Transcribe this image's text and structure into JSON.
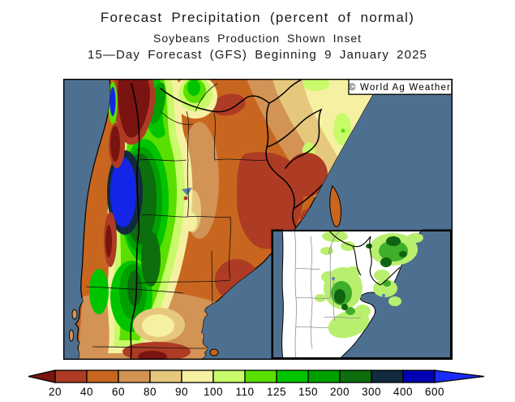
{
  "title": {
    "line1": "Forecast Precipitation (percent of normal)",
    "line2": "Soybeans Production Shown Inset",
    "line3": "15—Day Forecast (GFS) Beginning 9 January 2025"
  },
  "map": {
    "copyright": "© World Ag Weather",
    "colors": {
      "ocean": "#4e7090",
      "land_base": "#c8661f",
      "country_border": "#000000",
      "inset_land": "#ffffff",
      "inset_province_border": "#8f8f8f",
      "inset_soy_light": "#b9ef6e",
      "inset_soy_medium": "#3fae2b",
      "inset_soy_dark": "#0f6410",
      "lake": "#5a82a8"
    }
  },
  "colorbar": {
    "unit": "percent of normal",
    "ticks": [
      "20",
      "40",
      "60",
      "80",
      "90",
      "100",
      "110",
      "125",
      "150",
      "200",
      "300",
      "400",
      "600"
    ],
    "colors": [
      "#7a1410",
      "#ae3b24",
      "#c8661f",
      "#d29355",
      "#e6c87c",
      "#f6f0a2",
      "#c9fa69",
      "#59e000",
      "#00c400",
      "#00a000",
      "#0c6e0c",
      "#13293e",
      "#0000b4",
      "#1b2bff"
    ]
  }
}
